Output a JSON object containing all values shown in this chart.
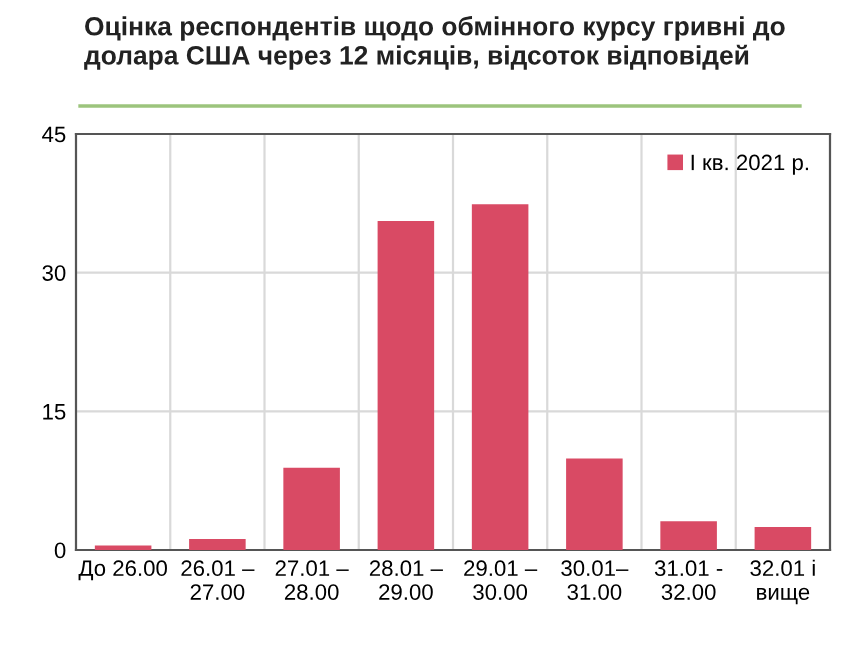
{
  "chart_data": {
    "type": "bar",
    "title": "Оцінка респондентів щодо обмінного курсу гривні до долара США через 12 місяців, відсоток відповідей",
    "categories": [
      "До 26.00",
      "26.01 –\n27.00",
      "27.01 –\n28.00",
      "28.01 –\n29.00",
      "29.01 –\n30.00",
      "30.01–\n31.00",
      "31.01 -\n32.00",
      "32.01 і\nвище"
    ],
    "series": [
      {
        "name": "І кв. 2021 р.",
        "color": "#d94a64",
        "values": [
          0.5,
          1.2,
          8.9,
          35.6,
          37.4,
          9.9,
          3.1,
          2.5
        ]
      }
    ],
    "ylim": [
      0,
      45
    ],
    "yticks": [
      0,
      15,
      30,
      45
    ],
    "grid": true,
    "legend": "top right"
  }
}
